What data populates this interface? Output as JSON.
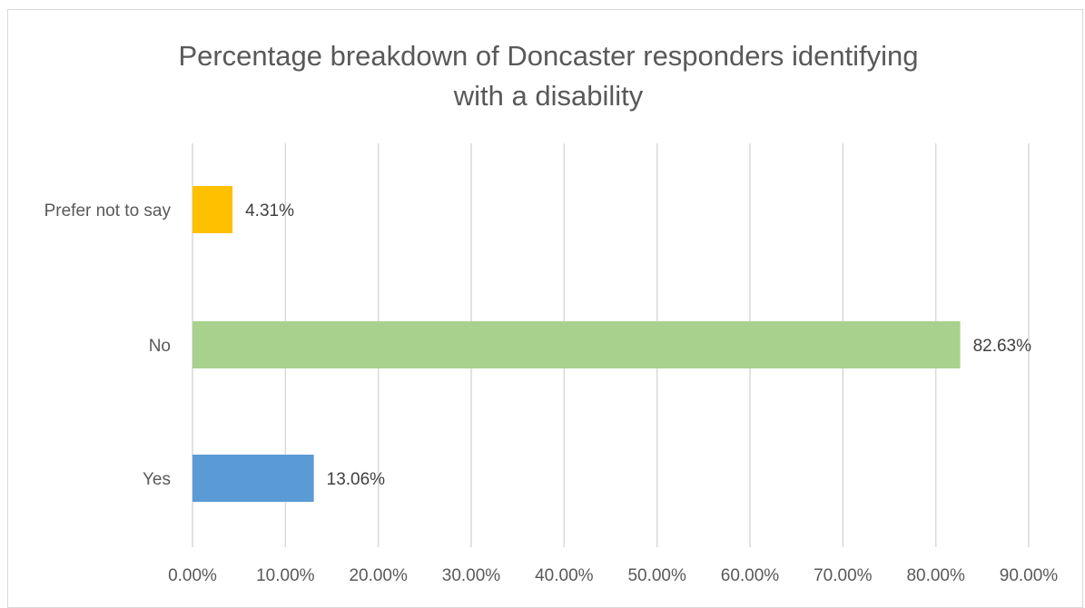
{
  "chart_data": {
    "type": "bar",
    "orientation": "horizontal",
    "title": "Percentage breakdown of Doncaster responders identifying with a disability",
    "title_lines": [
      "Percentage breakdown of Doncaster responders identifying",
      "with a disability"
    ],
    "categories": [
      "Yes",
      "No",
      "Prefer not to say"
    ],
    "values": [
      13.06,
      82.63,
      4.31
    ],
    "data_labels": [
      "13.06%",
      "82.63%",
      "4.31%"
    ],
    "colors": [
      "#5b9bd5",
      "#a9d18e",
      "#ffc000"
    ],
    "xlim": [
      0,
      90
    ],
    "xticks": [
      0,
      10,
      20,
      30,
      40,
      50,
      60,
      70,
      80,
      90
    ],
    "xtick_labels": [
      "0.00%",
      "10.00%",
      "20.00%",
      "30.00%",
      "40.00%",
      "50.00%",
      "60.00%",
      "70.00%",
      "80.00%",
      "90.00%"
    ],
    "xlabel": "",
    "ylabel": "",
    "grid": "vertical",
    "legend": "none"
  }
}
